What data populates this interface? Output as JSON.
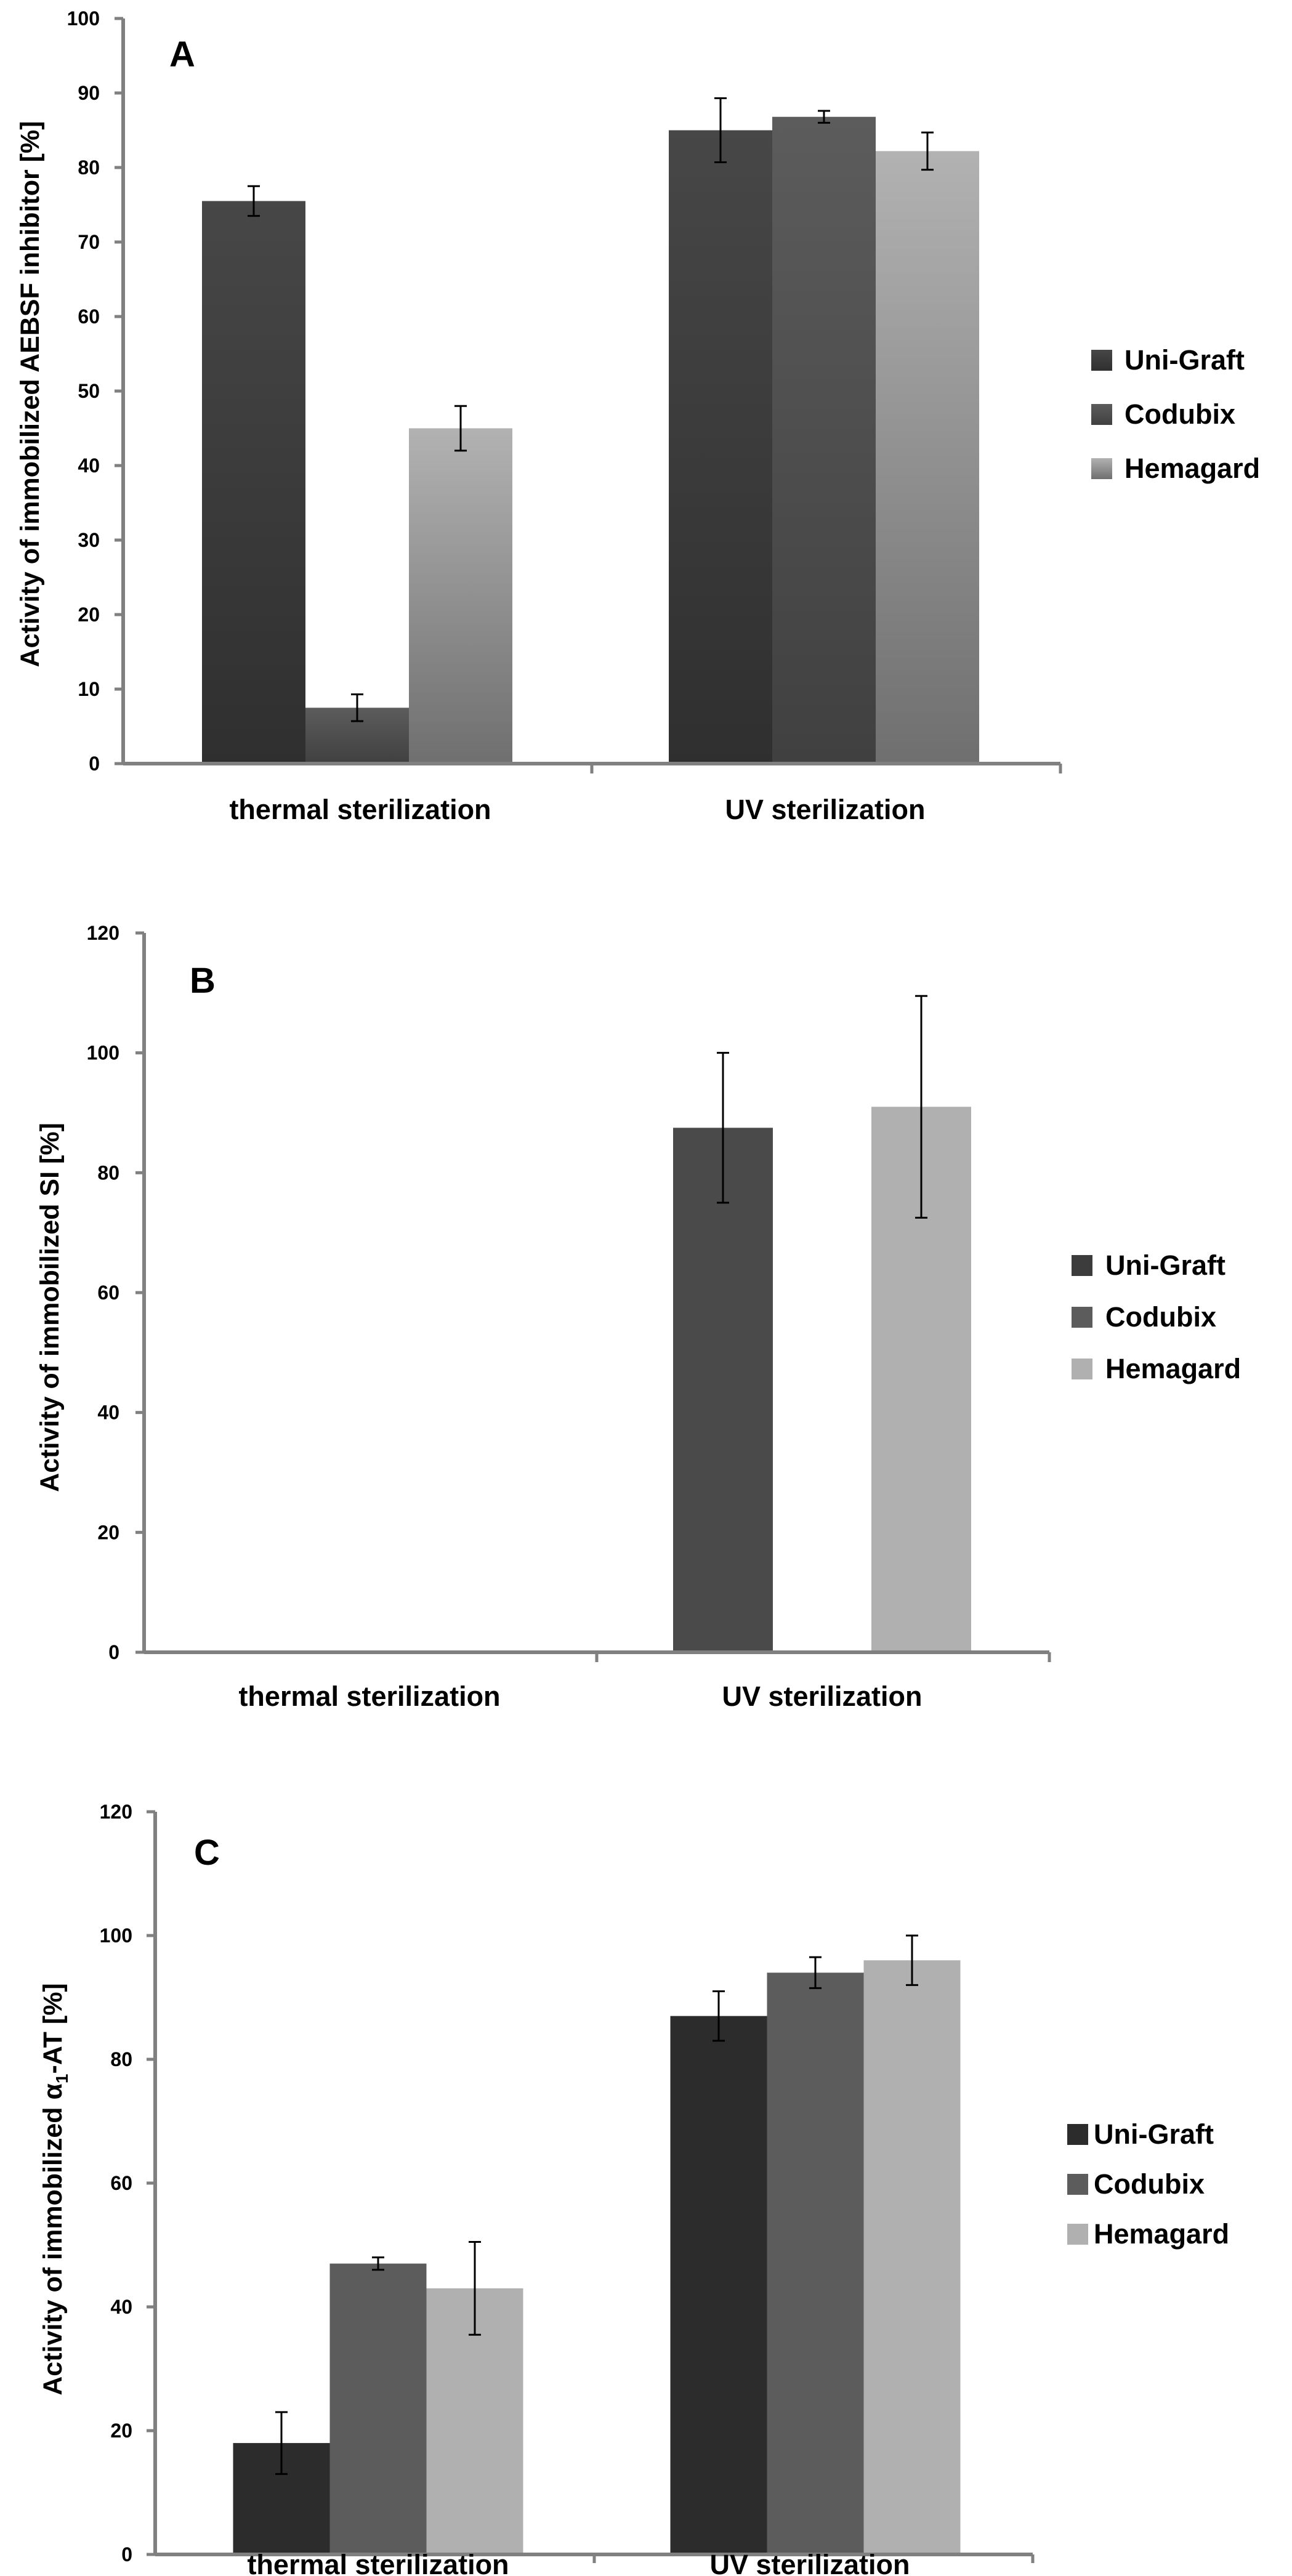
{
  "chart_data": [
    {
      "type": "bar",
      "panel_label": "A",
      "ylabel": "Activity of immobilized AEBSF inhibitor [%]",
      "xlabel": "",
      "ylim": [
        0,
        100
      ],
      "yticks": [
        0,
        10,
        20,
        30,
        40,
        50,
        60,
        70,
        80,
        90,
        100
      ],
      "grid": false,
      "legend_position": "right",
      "categories": [
        "thermal sterilization",
        "UV sterilization"
      ],
      "series": [
        {
          "name": "Uni-Graft",
          "values": [
            75.5,
            85
          ],
          "errors": [
            2,
            4.3
          ],
          "color": "#3e3e3e"
        },
        {
          "name": "Codubix",
          "values": [
            7.5,
            86.8
          ],
          "errors": [
            1.8,
            0.8
          ],
          "color": "#5a5a5a"
        },
        {
          "name": "Hemagard",
          "values": [
            45,
            82.2
          ],
          "errors": [
            3,
            2.5
          ],
          "color": "#a6a6a6"
        }
      ]
    },
    {
      "type": "bar",
      "panel_label": "B",
      "ylabel": "Activity of immobilized SI [%]",
      "xlabel": "",
      "ylim": [
        0,
        120
      ],
      "yticks": [
        0,
        20,
        40,
        60,
        80,
        100,
        120
      ],
      "grid": false,
      "legend_position": "right",
      "categories": [
        "thermal sterilization",
        "UV sterilization"
      ],
      "series": [
        {
          "name": "Uni-Graft",
          "values": [
            null,
            null
          ],
          "errors": [
            null,
            null
          ],
          "color": "#3c3c3c"
        },
        {
          "name": "Codubix",
          "values": [
            null,
            87.5
          ],
          "errors": [
            null,
            12.5
          ],
          "color": "#4a4a4a"
        },
        {
          "name": "Hemagard",
          "values": [
            null,
            91
          ],
          "errors": [
            null,
            18.5
          ],
          "color": "#b0b0b0"
        }
      ]
    },
    {
      "type": "bar",
      "panel_label": "C",
      "ylabel_main": "Activity of immobilized α",
      "ylabel_sub": "1",
      "ylabel_tail": "-AT [%]",
      "xlabel": "",
      "ylim": [
        0,
        120
      ],
      "yticks": [
        0,
        20,
        40,
        60,
        80,
        100,
        120
      ],
      "grid": false,
      "legend_position": "right",
      "categories": [
        "thermal sterilization",
        "UV sterilization"
      ],
      "series": [
        {
          "name": "Uni-Graft",
          "values": [
            18,
            87
          ],
          "errors": [
            5,
            4
          ],
          "color": "#2c2c2c"
        },
        {
          "name": "Codubix",
          "values": [
            47,
            94
          ],
          "errors": [
            1,
            2.5
          ],
          "color": "#5c5c5c"
        },
        {
          "name": "Hemagard",
          "values": [
            43,
            96
          ],
          "errors": [
            7.5,
            4
          ],
          "color": "#b0b0b0"
        }
      ]
    }
  ]
}
